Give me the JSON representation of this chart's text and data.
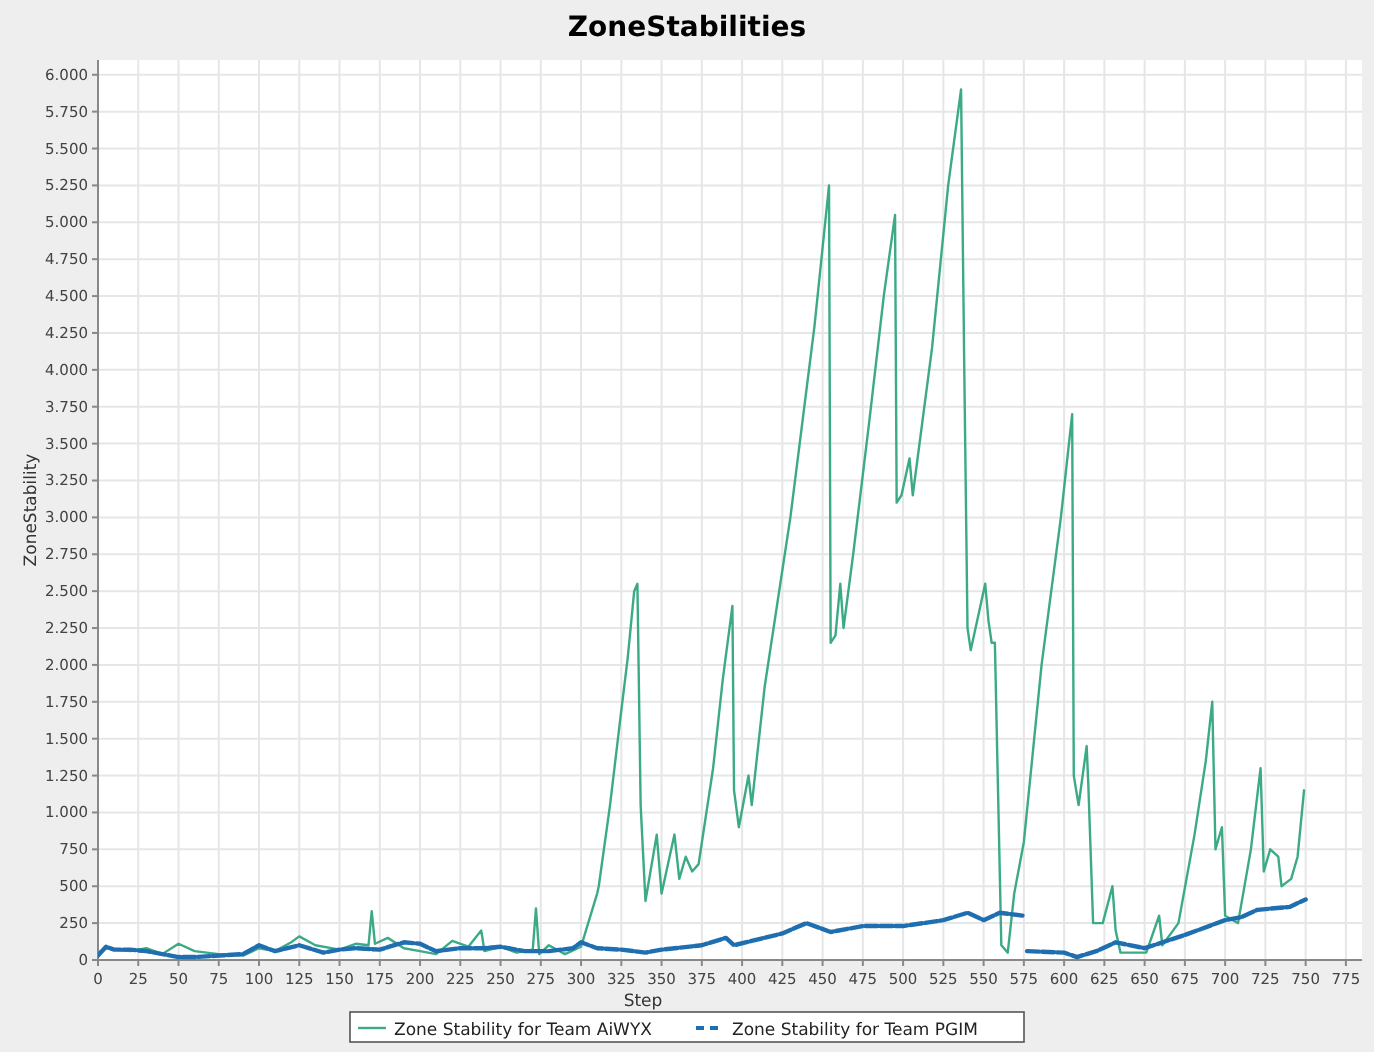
{
  "chart_data": {
    "type": "line",
    "title": "ZoneStabilities",
    "xlabel": "Step",
    "ylabel": "ZoneStability",
    "xlim": [
      0,
      785
    ],
    "ylim": [
      0,
      6100
    ],
    "xticks": [
      0,
      25,
      50,
      75,
      100,
      125,
      150,
      175,
      200,
      225,
      250,
      275,
      300,
      325,
      350,
      375,
      400,
      425,
      450,
      475,
      500,
      525,
      550,
      575,
      600,
      625,
      650,
      675,
      700,
      725,
      750,
      775
    ],
    "yticks": [
      0,
      250,
      500,
      750,
      {
        "value": 1000,
        "label": "1.000"
      },
      {
        "value": 1250,
        "label": "1.250"
      },
      {
        "value": 1500,
        "label": "1.500"
      },
      {
        "value": 1750,
        "label": "1.750"
      },
      {
        "value": 2000,
        "label": "2.000"
      },
      {
        "value": 2250,
        "label": "2.250"
      },
      {
        "value": 2500,
        "label": "2.500"
      },
      {
        "value": 2750,
        "label": "2.750"
      },
      {
        "value": 3000,
        "label": "3.000"
      },
      {
        "value": 3250,
        "label": "3.250"
      },
      {
        "value": 3500,
        "label": "3.500"
      },
      {
        "value": 3750,
        "label": "3.750"
      },
      {
        "value": 4000,
        "label": "4.000"
      },
      {
        "value": 4250,
        "label": "4.250"
      },
      {
        "value": 4500,
        "label": "4.500"
      },
      {
        "value": 4750,
        "label": "4.750"
      },
      {
        "value": 5000,
        "label": "5.000"
      },
      {
        "value": 5250,
        "label": "5.250"
      },
      {
        "value": 5500,
        "label": "5.500"
      },
      {
        "value": 5750,
        "label": "5.750"
      },
      {
        "value": 6000,
        "label": "6.000"
      }
    ],
    "grid": true,
    "legend": "bottom",
    "series": [
      {
        "name": "Zone Stability for Team AiWYX",
        "color": "#3caa86",
        "line_style": "solid",
        "x": [
          0,
          5,
          10,
          20,
          30,
          40,
          50,
          60,
          75,
          90,
          100,
          110,
          120,
          125,
          135,
          150,
          160,
          168,
          170,
          172,
          180,
          190,
          200,
          210,
          220,
          230,
          238,
          240,
          250,
          260,
          270,
          272,
          274,
          280,
          290,
          300,
          310,
          311,
          318,
          324,
          329,
          333,
          335,
          337,
          340,
          347,
          350,
          358,
          361,
          365,
          369,
          373,
          382,
          388,
          394,
          395,
          398,
          404,
          406,
          414,
          430,
          445,
          454,
          455,
          458,
          461,
          463,
          469,
          479,
          488,
          495,
          496,
          499,
          504,
          506,
          518,
          528,
          536,
          538,
          540,
          542,
          551,
          553,
          555,
          557,
          561,
          565,
          569,
          575,
          586,
          598,
          605,
          606,
          609,
          614,
          615,
          618,
          624,
          630,
          632,
          635,
          651,
          659,
          661,
          671,
          681,
          688,
          692,
          694,
          698,
          700,
          708,
          716,
          722,
          724,
          728,
          733,
          735,
          741,
          745,
          749
        ],
        "values": [
          50,
          80,
          70,
          60,
          80,
          40,
          110,
          60,
          40,
          30,
          80,
          60,
          120,
          160,
          100,
          70,
          110,
          100,
          330,
          110,
          150,
          80,
          60,
          40,
          130,
          90,
          200,
          60,
          90,
          50,
          70,
          350,
          40,
          100,
          40,
          90,
          450,
          500,
          1050,
          1600,
          2050,
          2500,
          2550,
          1050,
          400,
          850,
          450,
          850,
          550,
          700,
          600,
          650,
          1300,
          1900,
          2400,
          1150,
          900,
          1250,
          1050,
          1850,
          3000,
          4300,
          5250,
          2150,
          2200,
          2550,
          2250,
          2750,
          3650,
          4500,
          5050,
          3100,
          3150,
          3400,
          3150,
          4150,
          5250,
          5900,
          4000,
          2250,
          2100,
          2550,
          2300,
          2150,
          2150,
          100,
          50,
          450,
          800,
          2000,
          3000,
          3700,
          1250,
          1050,
          1450,
          1200,
          250,
          250,
          500,
          200,
          50,
          50,
          300,
          100,
          250,
          850,
          1350,
          1750,
          750,
          900,
          300,
          250,
          750,
          1300,
          600,
          750,
          700,
          500,
          550,
          700,
          1150
        ]
      },
      {
        "name": "Zone Stability for Team PGIM",
        "color": "#1f6fb0",
        "line_style": "dashed",
        "x": [
          0,
          5,
          10,
          20,
          30,
          40,
          50,
          60,
          75,
          90,
          100,
          110,
          125,
          140,
          150,
          160,
          175,
          190,
          200,
          210,
          225,
          240,
          250,
          265,
          280,
          295,
          300,
          310,
          325,
          340,
          350,
          375,
          390,
          395,
          425,
          440,
          455,
          475,
          500,
          525,
          540,
          550,
          560,
          575,
          576,
          577,
          600,
          608,
          620,
          632,
          650,
          675,
          700,
          710,
          720,
          740,
          750
        ],
        "values": [
          30,
          90,
          70,
          70,
          60,
          40,
          20,
          20,
          30,
          40,
          100,
          60,
          100,
          50,
          70,
          80,
          70,
          120,
          110,
          60,
          80,
          80,
          90,
          60,
          60,
          80,
          120,
          80,
          70,
          50,
          70,
          100,
          150,
          100,
          180,
          250,
          190,
          230,
          230,
          270,
          320,
          270,
          320,
          300,
          null,
          60,
          50,
          20,
          60,
          120,
          80,
          170,
          270,
          290,
          340,
          360,
          410
        ]
      }
    ]
  }
}
